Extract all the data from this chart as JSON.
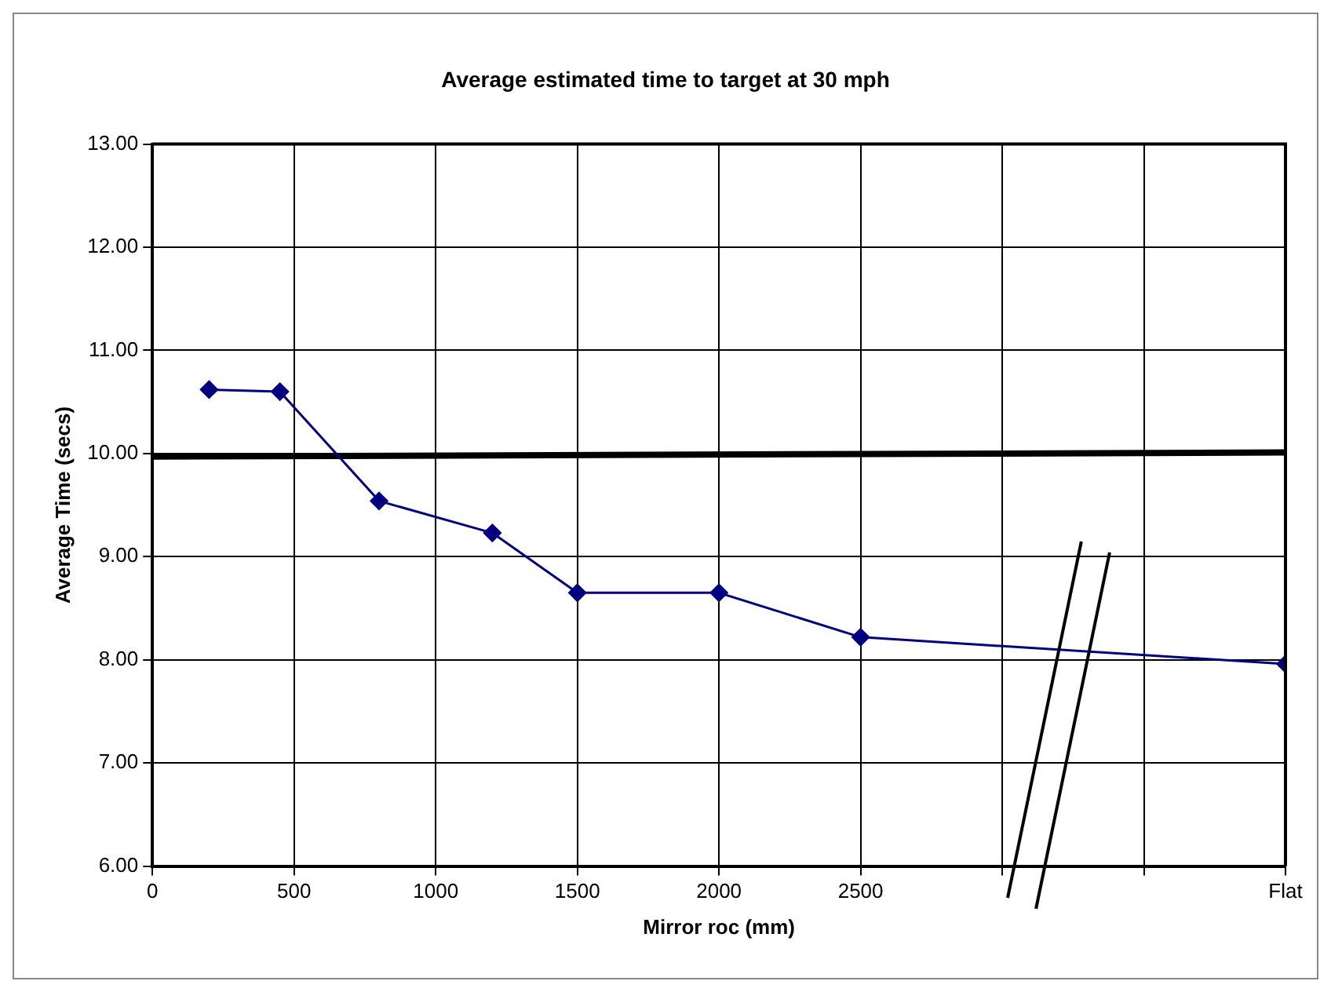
{
  "chart_data": {
    "type": "line",
    "title": "Average estimated time to target at 30 mph",
    "xlabel": "Mirror roc (mm)",
    "ylabel": "Average Time (secs)",
    "x": [
      200,
      450,
      800,
      1200,
      1500,
      2000,
      2500,
      4000
    ],
    "series": [
      {
        "color": "#000080",
        "values": [
          10.62,
          10.6,
          9.54,
          9.23,
          8.65,
          8.65,
          8.22,
          7.96
        ],
        "marker": "diamond"
      },
      {
        "type": "line",
        "color": "#000000",
        "x": [
          0,
          4000
        ],
        "values": [
          9.97,
          10.01
        ],
        "marker": "none"
      }
    ],
    "xlim": [
      0,
      4000
    ],
    "xticks": [
      0,
      500,
      1000,
      1500,
      2000,
      2500,
      {
        "value": 3000,
        "label": null
      },
      {
        "value": 3500,
        "label": null
      },
      {
        "value": 4000,
        "label": "Flat"
      }
    ],
    "ylim": [
      6,
      13
    ],
    "yticks": [
      {
        "value": 6,
        "label": "6.00"
      },
      {
        "value": 7,
        "label": "7.00"
      },
      {
        "value": 8,
        "label": "8.00"
      },
      {
        "value": 9,
        "label": "9.00"
      },
      {
        "value": 10,
        "label": "10.00"
      },
      {
        "value": 11,
        "label": "11.00"
      },
      {
        "value": 12,
        "label": "12.00"
      },
      {
        "value": 13,
        "label": "13.00"
      }
    ],
    "grid": true,
    "legend": false
  }
}
